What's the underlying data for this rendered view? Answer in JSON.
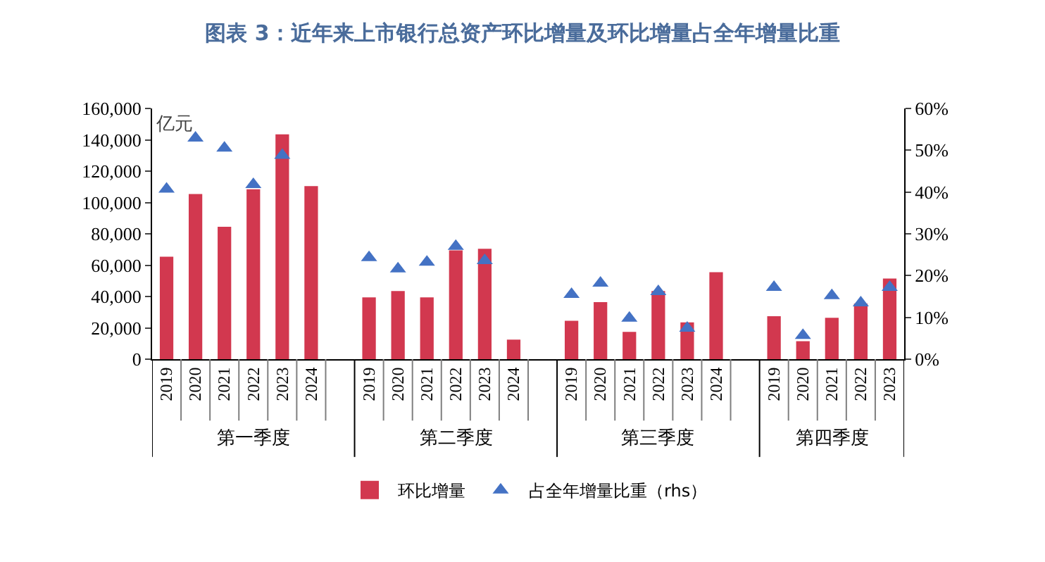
{
  "chart_data": {
    "type": "bar",
    "title": "图表 3：近年来上市银行总资产环比增量及环比增量占全年增量比重",
    "categories": [
      "2019",
      "2020",
      "2021",
      "2022",
      "2023",
      "2024",
      null,
      "2019",
      "2020",
      "2021",
      "2022",
      "2023",
      "2024",
      null,
      "2019",
      "2020",
      "2021",
      "2022",
      "2023",
      "2024",
      null,
      "2019",
      "2020",
      "2021",
      "2022",
      "2023"
    ],
    "annotations": [
      "亿元",
      "第一季度",
      "第二季度",
      "第三季度",
      "第四季度"
    ],
    "series": [
      {
        "name": "环比增量",
        "color": "#d2384f",
        "values": [
          65000,
          105000,
          84000,
          108000,
          143000,
          110000,
          null,
          39000,
          43000,
          39000,
          69000,
          70000,
          12000,
          null,
          24000,
          36000,
          17000,
          43000,
          23000,
          55000,
          null,
          27000,
          11000,
          26000,
          35000,
          51000
        ]
      },
      {
        "name": "占全年增量比重（rhs）",
        "type": "scatter",
        "axis": "y2",
        "marker": "triangle",
        "color": "#4472c4",
        "values": [
          40.7,
          52.9,
          50.5,
          41.8,
          48.8,
          null,
          null,
          24.3,
          21.6,
          23.2,
          27.0,
          23.6,
          null,
          null,
          15.5,
          18.2,
          9.8,
          16.2,
          7.4,
          null,
          null,
          17.2,
          5.7,
          15.2,
          13.5,
          17.2
        ]
      }
    ],
    "ylim": [
      0,
      160000
    ],
    "yticks": [
      {
        "value": 0,
        "label": "0"
      },
      {
        "value": 20000,
        "label": "20,000"
      },
      {
        "value": 40000,
        "label": "40,000"
      },
      {
        "value": 60000,
        "label": "60,000"
      },
      {
        "value": 80000,
        "label": "80,000"
      },
      {
        "value": 100000,
        "label": "100,000"
      },
      {
        "value": 120000,
        "label": "120,000"
      },
      {
        "value": 140000,
        "label": "140,000"
      },
      {
        "value": 160000,
        "label": "160,000"
      }
    ],
    "y2lim": [
      0,
      60
    ],
    "y2ticks": [
      {
        "value": 0,
        "label": "0%"
      },
      {
        "value": 10,
        "label": "10%"
      },
      {
        "value": 20,
        "label": "20%"
      },
      {
        "value": 30,
        "label": "30%"
      },
      {
        "value": 40,
        "label": "40%"
      },
      {
        "value": 50,
        "label": "50%"
      },
      {
        "value": 60,
        "label": "60%"
      }
    ],
    "grid": false,
    "legend": "bottom"
  }
}
